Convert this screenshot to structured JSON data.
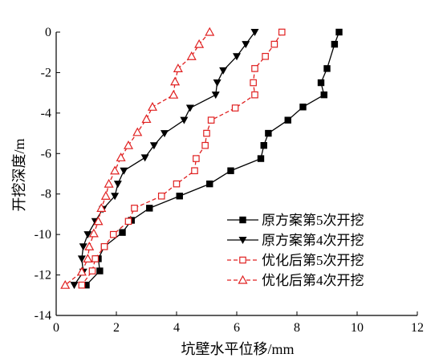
{
  "chart_data": {
    "type": "line",
    "xlabel": "坑壁水平位移/mm",
    "ylabel": "开挖深度/m",
    "xlim": [
      0,
      12
    ],
    "ylim": [
      -14,
      0
    ],
    "x_ticks": [
      0,
      2,
      4,
      6,
      8,
      10,
      12
    ],
    "y_ticks": [
      0,
      -2,
      -4,
      -6,
      -8,
      -10,
      -12,
      -14
    ],
    "grid": false,
    "legend_position": "bottom-right",
    "series": [
      {
        "name": "原方案第5次开挖",
        "marker": "filled-square",
        "line": "solid",
        "color": "#000000",
        "points": [
          [
            9.4,
            0
          ],
          [
            9.25,
            -0.6
          ],
          [
            9.0,
            -1.8
          ],
          [
            8.8,
            -2.5
          ],
          [
            8.9,
            -3.1
          ],
          [
            8.2,
            -3.7
          ],
          [
            7.7,
            -4.35
          ],
          [
            7.05,
            -5.0
          ],
          [
            6.9,
            -5.6
          ],
          [
            6.8,
            -6.25
          ],
          [
            5.8,
            -6.85
          ],
          [
            5.1,
            -7.5
          ],
          [
            4.1,
            -8.1
          ],
          [
            3.1,
            -8.7
          ],
          [
            2.5,
            -9.3
          ],
          [
            2.2,
            -9.9
          ],
          [
            1.6,
            -10.6
          ],
          [
            1.4,
            -11.2
          ],
          [
            1.45,
            -11.8
          ],
          [
            1.0,
            -12.5
          ]
        ]
      },
      {
        "name": "原方案第4次开挖",
        "marker": "filled-triangle-down",
        "line": "solid",
        "color": "#000000",
        "points": [
          [
            6.6,
            0
          ],
          [
            6.3,
            -0.6
          ],
          [
            6.0,
            -1.2
          ],
          [
            5.55,
            -1.9
          ],
          [
            5.35,
            -2.5
          ],
          [
            5.3,
            -3.1
          ],
          [
            4.45,
            -3.75
          ],
          [
            4.25,
            -4.35
          ],
          [
            3.6,
            -5.0
          ],
          [
            3.25,
            -5.6
          ],
          [
            2.95,
            -6.2
          ],
          [
            2.25,
            -6.85
          ],
          [
            2.05,
            -7.5
          ],
          [
            1.95,
            -8.1
          ],
          [
            1.55,
            -8.75
          ],
          [
            1.3,
            -9.35
          ],
          [
            1.05,
            -10.0
          ],
          [
            0.9,
            -10.6
          ],
          [
            0.85,
            -11.2
          ],
          [
            0.9,
            -11.85
          ],
          [
            0.6,
            -12.5
          ]
        ]
      },
      {
        "name": "优化后第5次开挖",
        "marker": "open-square",
        "line": "dashed",
        "color": "#e02020",
        "points": [
          [
            7.5,
            0
          ],
          [
            7.25,
            -0.6
          ],
          [
            6.95,
            -1.2
          ],
          [
            6.6,
            -1.8
          ],
          [
            6.55,
            -2.5
          ],
          [
            6.6,
            -3.1
          ],
          [
            5.95,
            -3.75
          ],
          [
            5.15,
            -4.35
          ],
          [
            5.0,
            -5.0
          ],
          [
            4.95,
            -5.6
          ],
          [
            4.65,
            -6.25
          ],
          [
            4.6,
            -6.85
          ],
          [
            4.0,
            -7.5
          ],
          [
            3.5,
            -8.1
          ],
          [
            2.6,
            -8.7
          ],
          [
            2.4,
            -9.35
          ],
          [
            1.9,
            -10.0
          ],
          [
            1.6,
            -10.6
          ],
          [
            1.3,
            -11.2
          ],
          [
            1.2,
            -11.8
          ],
          [
            0.85,
            -12.5
          ]
        ]
      },
      {
        "name": "优化后第4次开挖",
        "marker": "open-triangle-up",
        "line": "dashed",
        "color": "#e02020",
        "points": [
          [
            5.1,
            0
          ],
          [
            4.75,
            -0.6
          ],
          [
            4.5,
            -1.2
          ],
          [
            4.05,
            -1.8
          ],
          [
            3.95,
            -2.45
          ],
          [
            3.9,
            -3.1
          ],
          [
            3.2,
            -3.7
          ],
          [
            3.0,
            -4.3
          ],
          [
            2.7,
            -4.95
          ],
          [
            2.4,
            -5.6
          ],
          [
            2.15,
            -6.2
          ],
          [
            1.95,
            -6.85
          ],
          [
            1.75,
            -7.5
          ],
          [
            1.65,
            -8.1
          ],
          [
            1.5,
            -8.7
          ],
          [
            1.4,
            -9.35
          ],
          [
            1.25,
            -9.95
          ],
          [
            1.1,
            -10.6
          ],
          [
            1.05,
            -11.2
          ],
          [
            0.85,
            -11.85
          ],
          [
            0.3,
            -12.5
          ]
        ]
      }
    ]
  }
}
